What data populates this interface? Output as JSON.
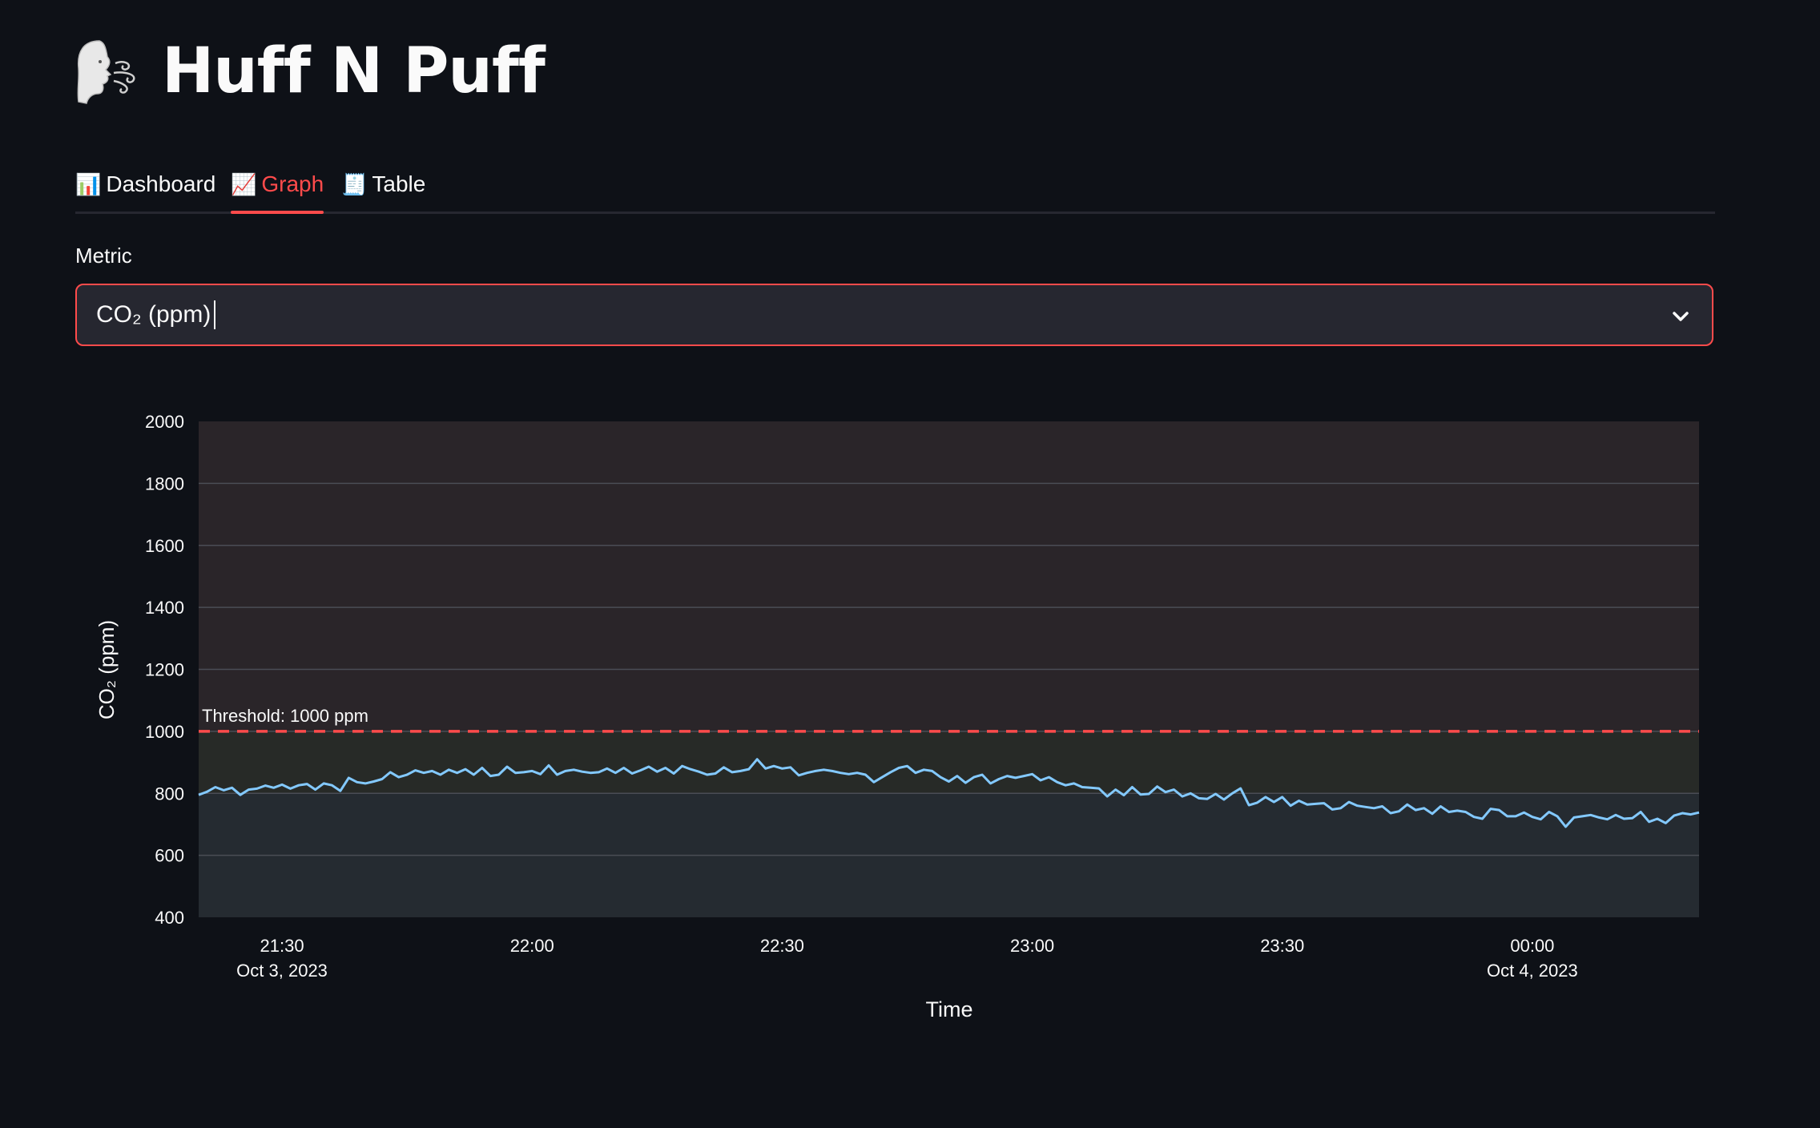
{
  "app": {
    "title": "Huff N Puff",
    "icon": "face-blowing-wind-icon"
  },
  "tabs": [
    {
      "label": "Dashboard",
      "icon": "📊",
      "active": false
    },
    {
      "label": "Graph",
      "icon": "📈",
      "active": true
    },
    {
      "label": "Table",
      "icon": "🧾",
      "active": false
    }
  ],
  "metric": {
    "label": "Metric",
    "selected": "CO₂ (ppm)",
    "options_visible": [
      "CO₂ (ppm)"
    ]
  },
  "colors": {
    "accent": "#ff4b4b",
    "line": "#83c9ff",
    "threshold": "#ff4b4b",
    "background": "#0e1117"
  },
  "chart_data": {
    "type": "line",
    "xlabel": "Time",
    "ylabel": "CO₂ (ppm)",
    "ylim": [
      400,
      2000
    ],
    "yticks": [
      400,
      600,
      800,
      1000,
      1200,
      1400,
      1600,
      1800,
      2000
    ],
    "xlim": [
      "2023-10-03 21:20",
      "2023-10-04 00:20"
    ],
    "xticks": [
      {
        "time": "2023-10-03 21:30",
        "label": "21:30",
        "sublabel": "Oct 3, 2023"
      },
      {
        "time": "2023-10-03 22:00",
        "label": "22:00",
        "sublabel": ""
      },
      {
        "time": "2023-10-03 22:30",
        "label": "22:30",
        "sublabel": ""
      },
      {
        "time": "2023-10-03 23:00",
        "label": "23:00",
        "sublabel": ""
      },
      {
        "time": "2023-10-03 23:30",
        "label": "23:30",
        "sublabel": ""
      },
      {
        "time": "2023-10-04 00:00",
        "label": "00:00",
        "sublabel": "Oct 4, 2023"
      }
    ],
    "grid": true,
    "threshold": {
      "value": 1000,
      "label": "Threshold: 1000 ppm"
    },
    "bands": [
      {
        "from": 400,
        "to": 800,
        "color": "#252b31"
      },
      {
        "from": 800,
        "to": 1000,
        "color": "#272a27"
      },
      {
        "from": 1000,
        "to": 2000,
        "color": "#2a2529"
      }
    ],
    "series": [
      {
        "start": "2023-10-03 21:20",
        "end": "2023-10-04 00:20",
        "values": [
          795,
          805,
          820,
          810,
          818,
          795,
          812,
          815,
          825,
          818,
          828,
          815,
          826,
          830,
          812,
          832,
          826,
          808,
          850,
          836,
          832,
          838,
          846,
          868,
          852,
          860,
          874,
          866,
          872,
          860,
          876,
          866,
          878,
          860,
          882,
          856,
          860,
          886,
          866,
          868,
          872,
          862,
          890,
          860,
          872,
          876,
          870,
          866,
          868,
          880,
          866,
          882,
          864,
          874,
          886,
          870,
          882,
          864,
          888,
          878,
          870,
          860,
          864,
          884,
          868,
          872,
          878,
          910,
          880,
          888,
          880,
          884,
          858,
          866,
          872,
          876,
          872,
          866,
          862,
          866,
          860,
          836,
          852,
          868,
          882,
          888,
          866,
          876,
          872,
          852,
          838,
          856,
          834,
          852,
          860,
          832,
          846,
          856,
          850,
          856,
          862,
          842,
          852,
          836,
          826,
          832,
          820,
          818,
          816,
          790,
          812,
          794,
          820,
          796,
          798,
          822,
          804,
          812,
          790,
          800,
          784,
          782,
          798,
          780,
          800,
          816,
          762,
          770,
          788,
          772,
          788,
          760,
          776,
          764,
          766,
          768,
          748,
          752,
          772,
          760,
          756,
          752,
          758,
          736,
          742,
          764,
          746,
          752,
          734,
          758,
          740,
          744,
          740,
          724,
          718,
          750,
          746,
          726,
          726,
          738,
          724,
          716,
          740,
          726,
          692,
          722,
          726,
          730,
          722,
          716,
          730,
          718,
          720,
          740,
          708,
          718,
          704,
          728,
          736,
          732,
          738
        ]
      }
    ]
  }
}
